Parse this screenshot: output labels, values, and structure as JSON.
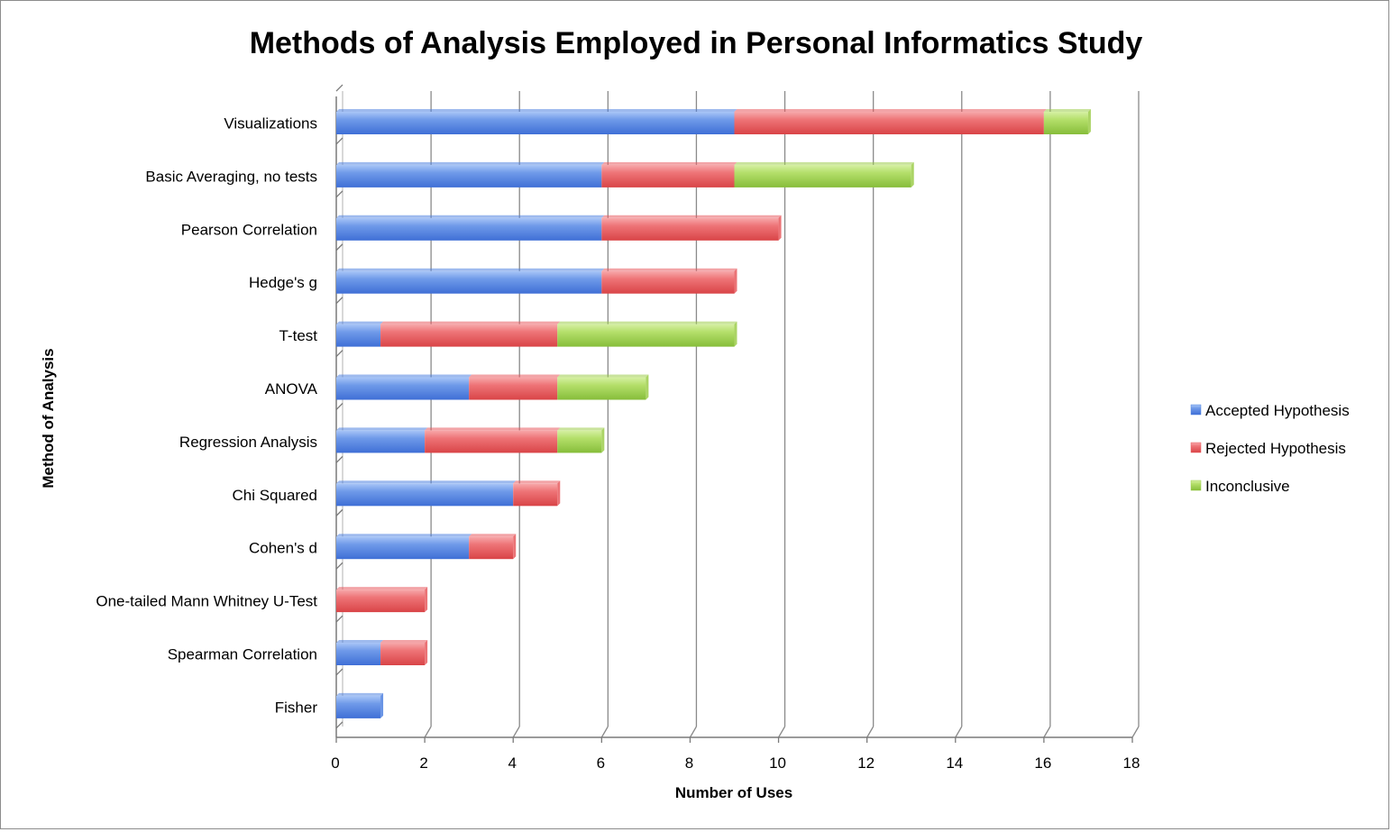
{
  "chart_data": {
    "type": "bar",
    "orientation": "horizontal",
    "stacked": true,
    "title": "Methods of Analysis Employed in Personal Informatics Study",
    "xlabel": "Number of Uses",
    "ylabel": "Method of Analysis",
    "xlim": [
      0,
      18
    ],
    "xticks": [
      0,
      2,
      4,
      6,
      8,
      10,
      12,
      14,
      16,
      18
    ],
    "grid": "vertical",
    "legend_position": "right",
    "categories": [
      "Visualizations",
      "Basic Averaging, no tests",
      "Pearson Correlation",
      "Hedge's g",
      "T-test",
      "ANOVA",
      "Regression Analysis",
      "Chi Squared",
      "Cohen's d",
      "One-tailed Mann Whitney U-Test",
      "Spearman Correlation",
      "Fisher"
    ],
    "series": [
      {
        "name": "Accepted Hypothesis",
        "color": "#4f81e0",
        "values": [
          9,
          6,
          6,
          6,
          1,
          3,
          2,
          4,
          3,
          0,
          1,
          1
        ]
      },
      {
        "name": "Rejected Hypothesis",
        "color": "#e85a5e",
        "values": [
          7,
          3,
          4,
          3,
          4,
          2,
          3,
          1,
          1,
          2,
          1,
          0
        ]
      },
      {
        "name": "Inconclusive",
        "color": "#9ccc4a",
        "values": [
          1,
          4,
          0,
          0,
          4,
          2,
          1,
          0,
          0,
          0,
          0,
          0
        ]
      }
    ]
  }
}
